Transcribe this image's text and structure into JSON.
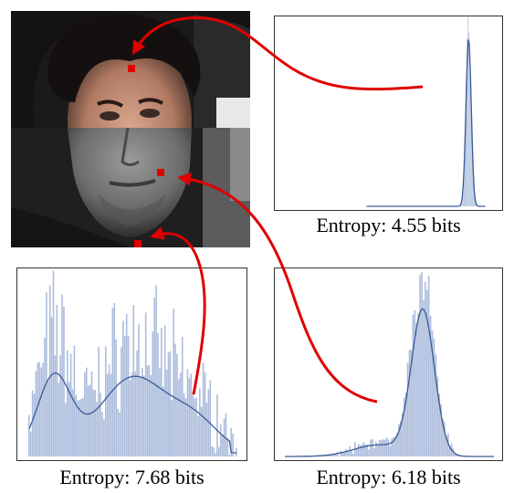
{
  "captions": {
    "top_right": "Entropy: 4.55 bits",
    "bottom_left": "Entropy: 7.68 bits",
    "bottom_right": "Entropy: 6.18 bits"
  },
  "colors": {
    "hist_fill": "#9fb1d6",
    "kde_line": "#3a5a96",
    "arrow": "#e00000",
    "marker": "#e00000"
  },
  "histograms": {
    "top_right": {
      "shape": "narrow-peak",
      "peak": 0.82,
      "sd": 0.02
    },
    "bottom_left": {
      "shape": "broad-bimodal"
    },
    "bottom_right": {
      "shape": "skewed-peak",
      "peak": 0.68,
      "sd": 0.05
    }
  },
  "image": {
    "description_icons": [
      "face-photo-icon"
    ]
  }
}
